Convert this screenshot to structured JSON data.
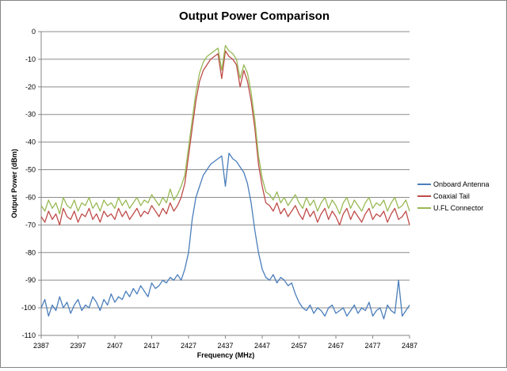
{
  "chart_data": {
    "type": "line",
    "title": "Output Power Comparison",
    "xlabel": "Frequency (MHz)",
    "ylabel": "Output Power (dBm)",
    "xlim": [
      2387,
      2487
    ],
    "ylim": [
      -110,
      0
    ],
    "x_ticks": [
      2387,
      2397,
      2407,
      2417,
      2427,
      2437,
      2447,
      2457,
      2467,
      2477,
      2487
    ],
    "y_ticks": [
      0,
      -10,
      -20,
      -30,
      -40,
      -50,
      -60,
      -70,
      -80,
      -90,
      -100,
      -110
    ],
    "grid": "horizontal",
    "legend": "right",
    "x_start": 2387,
    "x_step": 1,
    "series": [
      {
        "name": "Onboard Antenna",
        "color": "#4a7ebb",
        "values": [
          -100,
          -97,
          -103,
          -99,
          -101,
          -96,
          -100,
          -98,
          -102,
          -99,
          -97,
          -101,
          -99,
          -100,
          -96,
          -98,
          -101,
          -97,
          -99,
          -95,
          -98,
          -96,
          -97,
          -94,
          -96,
          -93,
          -95,
          -92,
          -94,
          -96,
          -91,
          -93,
          -92,
          -90,
          -91,
          -89,
          -90,
          -88,
          -90,
          -86,
          -80,
          -68,
          -60,
          -56,
          -52,
          -50,
          -48,
          -47,
          -46,
          -45,
          -56,
          -44,
          -46,
          -47,
          -49,
          -51,
          -55,
          -62,
          -72,
          -80,
          -86,
          -89,
          -90,
          -88,
          -91,
          -89,
          -90,
          -92,
          -91,
          -95,
          -98,
          -100,
          -101,
          -99,
          -102,
          -100,
          -101,
          -103,
          -100,
          -99,
          -102,
          -101,
          -100,
          -103,
          -101,
          -99,
          -102,
          -100,
          -101,
          -98,
          -103,
          -101,
          -100,
          -104,
          -99,
          -101,
          -102,
          -90,
          -103,
          -101,
          -99
        ]
      },
      {
        "name": "Coaxial Tail",
        "color": "#be4b48",
        "values": [
          -67,
          -69,
          -65,
          -68,
          -66,
          -70,
          -64,
          -67,
          -68,
          -65,
          -69,
          -66,
          -67,
          -64,
          -68,
          -66,
          -69,
          -65,
          -67,
          -66,
          -68,
          -64,
          -67,
          -65,
          -68,
          -66,
          -64,
          -67,
          -65,
          -66,
          -63,
          -65,
          -67,
          -64,
          -66,
          -62,
          -65,
          -63,
          -60,
          -55,
          -45,
          -35,
          -25,
          -18,
          -14,
          -12,
          -10,
          -9,
          -8,
          -17,
          -7,
          -9,
          -10,
          -12,
          -20,
          -14,
          -18,
          -25,
          -35,
          -48,
          -56,
          -62,
          -63,
          -65,
          -62,
          -66,
          -64,
          -67,
          -65,
          -63,
          -66,
          -68,
          -64,
          -67,
          -65,
          -69,
          -66,
          -64,
          -68,
          -65,
          -67,
          -70,
          -66,
          -64,
          -68,
          -65,
          -67,
          -69,
          -66,
          -64,
          -68,
          -66,
          -67,
          -65,
          -69,
          -66,
          -64,
          -68,
          -67,
          -65,
          -70
        ]
      },
      {
        "name": "U.FL Connector",
        "color": "#98b954",
        "values": [
          -63,
          -65,
          -61,
          -64,
          -62,
          -66,
          -60,
          -63,
          -64,
          -61,
          -65,
          -62,
          -63,
          -60,
          -64,
          -62,
          -65,
          -61,
          -63,
          -62,
          -64,
          -60,
          -63,
          -61,
          -64,
          -62,
          -60,
          -63,
          -61,
          -62,
          -59,
          -61,
          -63,
          -60,
          -62,
          -57,
          -61,
          -59,
          -56,
          -52,
          -42,
          -32,
          -22,
          -15,
          -11,
          -9,
          -8,
          -7,
          -6,
          -14,
          -5,
          -7,
          -8,
          -10,
          -17,
          -12,
          -15,
          -22,
          -32,
          -45,
          -53,
          -58,
          -59,
          -61,
          -58,
          -62,
          -60,
          -63,
          -61,
          -59,
          -62,
          -64,
          -60,
          -63,
          -61,
          -65,
          -62,
          -60,
          -64,
          -61,
          -63,
          -66,
          -62,
          -60,
          -64,
          -61,
          -63,
          -65,
          -62,
          -60,
          -64,
          -62,
          -63,
          -61,
          -65,
          -62,
          -60,
          -64,
          -63,
          -61,
          -65
        ]
      }
    ]
  }
}
